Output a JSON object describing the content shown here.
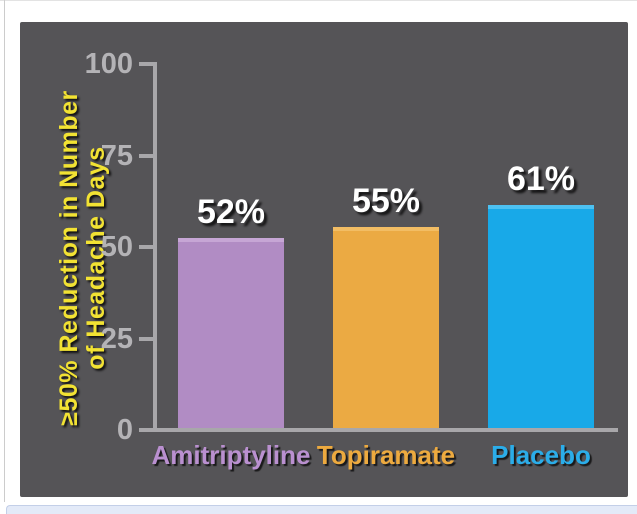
{
  "chart_data": {
    "type": "bar",
    "title": "",
    "ylabel": "≥50% Reduction in Number of Headache Days",
    "ylabel_line1": "≥50% Reduction in Number",
    "ylabel_line2": "of Headache Days",
    "categories": [
      "Amitriptyline",
      "Topiramate",
      "Placebo"
    ],
    "values": [
      52,
      55,
      61
    ],
    "value_labels": [
      "52%",
      "55%",
      "61%"
    ],
    "yticks": [
      100,
      75,
      50,
      25,
      0
    ],
    "ylim": [
      0,
      100
    ],
    "grid": false,
    "legend": false,
    "colors": {
      "background": "#555457",
      "axis": "#a8a7aa",
      "tick_label": "#b4b3b6",
      "ylabel": "#f2e233",
      "value_label": "#ffffff",
      "bars": [
        "#b18cc4",
        "#ebaa43",
        "#18a9e8"
      ],
      "bar_highlights": [
        "#c6a6d5",
        "#f2bd64",
        "#4dc1f1"
      ],
      "category_labels": [
        "#ba90d0",
        "#edaa3f",
        "#2bade9"
      ]
    }
  },
  "frame": {
    "bottom_strip_color": "#e3eaf8"
  }
}
